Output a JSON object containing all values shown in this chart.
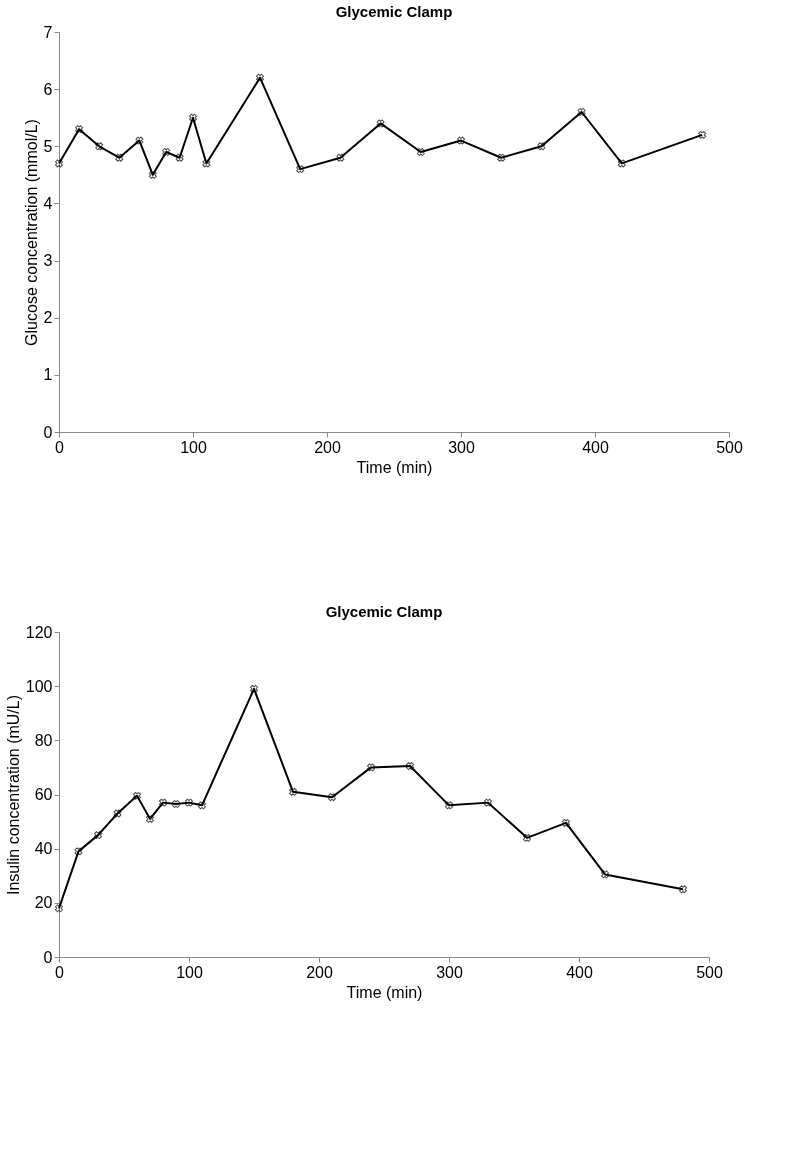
{
  "chart_data": [
    {
      "type": "line",
      "title": "Glycemic Clamp",
      "xlabel": "Time (min)",
      "ylabel": "Glucose concentration (mmol/L)",
      "xlim": [
        0,
        500
      ],
      "xticks": [
        0,
        100,
        200,
        300,
        400,
        500
      ],
      "ylim": [
        0,
        7
      ],
      "yticks": [
        0,
        1,
        2,
        3,
        4,
        5,
        6,
        7
      ],
      "grid": false,
      "legend": false,
      "marker": "cross",
      "line_style": "solid",
      "x": [
        0,
        15,
        30,
        45,
        60,
        70,
        80,
        90,
        100,
        110,
        150,
        180,
        210,
        240,
        270,
        300,
        330,
        360,
        390,
        420,
        480
      ],
      "series": [
        {
          "color": "#000000",
          "values": [
            4.7,
            5.3,
            5.0,
            4.8,
            5.1,
            4.5,
            4.9,
            4.8,
            5.5,
            4.7,
            6.2,
            4.6,
            4.8,
            5.4,
            4.9,
            5.1,
            4.8,
            5.0,
            5.6,
            4.7,
            5.2
          ]
        }
      ]
    },
    {
      "type": "line",
      "title": "Glycemic Clamp",
      "xlabel": "Time (min)",
      "ylabel": "Insulin concentration (mU/L)",
      "xlim": [
        0,
        500
      ],
      "xticks": [
        0,
        100,
        200,
        300,
        400,
        500
      ],
      "ylim": [
        0,
        120
      ],
      "yticks": [
        0,
        20,
        40,
        60,
        80,
        100,
        120
      ],
      "grid": false,
      "legend": false,
      "marker": "cross",
      "line_style": "solid",
      "x": [
        0,
        15,
        30,
        45,
        60,
        70,
        80,
        90,
        100,
        110,
        150,
        180,
        210,
        240,
        270,
        300,
        330,
        360,
        390,
        420,
        480
      ],
      "series": [
        {
          "color": "#000000",
          "values": [
            18,
            39,
            45,
            53,
            59.5,
            51,
            57,
            56.5,
            57,
            56,
            99,
            61,
            59,
            70,
            70.5,
            56,
            57,
            44,
            49.5,
            30.5,
            25
          ]
        }
      ]
    }
  ]
}
